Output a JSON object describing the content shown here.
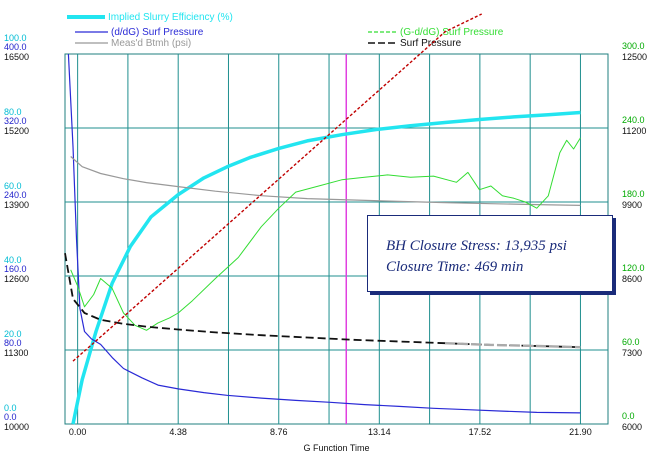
{
  "chart_data": {
    "type": "line",
    "title": "",
    "xlabel": "G Function Time",
    "x_ticks": [
      "0.00",
      "4.38",
      "8.76",
      "13.14",
      "17.52",
      "21.90"
    ],
    "xlim": [
      -0.55,
      23.1
    ],
    "grid": true,
    "closure_marker_x": 11.7,
    "axes": {
      "efficiency": {
        "ticks": [
          "0.0",
          "20.0",
          "40.0",
          "60.0",
          "80.0",
          "100.0"
        ],
        "ylim": [
          0,
          100
        ],
        "color": "#00bcd4"
      },
      "dd_pressure": {
        "ticks": [
          "0.0",
          "80.0",
          "160.0",
          "240.0",
          "320.0",
          "400.0"
        ],
        "ylim": [
          0,
          400
        ],
        "color": "#2222cc"
      },
      "btmh": {
        "ticks": [
          "10000",
          "11300",
          "12600",
          "13900",
          "15200",
          "16500"
        ],
        "ylim": [
          10000,
          16500
        ],
        "color": "#111111"
      },
      "gdd_pressure": {
        "ticks": [
          "0.0",
          "60.0",
          "120.0",
          "180.0",
          "240.0",
          "300.0"
        ],
        "ylim": [
          0,
          300
        ],
        "color": "#00aa00"
      },
      "surf_pressure": {
        "ticks": [
          "6000",
          "7300",
          "8600",
          "9900",
          "11200",
          "12500"
        ],
        "ylim": [
          6000,
          12500
        ],
        "color": "#111111"
      }
    },
    "series": [
      {
        "name": "Implied Slurry Efficiency (%)",
        "color": "#22e5f0",
        "axis": "efficiency",
        "x": [
          -0.2,
          0.2,
          0.8,
          1.5,
          2.3,
          3.2,
          4.38,
          5.5,
          6.5,
          7.5,
          8.76,
          10,
          11.5,
          13,
          14.5,
          16,
          17.5,
          19,
          20.5,
          21.9
        ],
        "y": [
          0,
          12,
          25,
          38,
          48,
          56,
          62,
          66.5,
          69.5,
          72,
          74.5,
          76.5,
          78.2,
          79.6,
          80.6,
          81.5,
          82.3,
          83,
          83.6,
          84.2
        ]
      },
      {
        "name": "(d/dG) Surf Pressure",
        "color": "#2a2ad6",
        "axis": "dd_pressure",
        "x": [
          -0.4,
          -0.2,
          -0.05,
          0.1,
          0.3,
          0.6,
          1.0,
          1.5,
          2.0,
          2.8,
          3.5,
          4.38,
          5.5,
          6.5,
          8.0,
          9.5,
          11.0,
          12.5,
          14.0,
          15.5,
          17.0,
          18.5,
          20.0,
          21.9
        ],
        "y": [
          400,
          300,
          200,
          125,
          100,
          92,
          86,
          72,
          60,
          50,
          42,
          38,
          34,
          31,
          28,
          25.5,
          23.5,
          21,
          19,
          17,
          15.5,
          14,
          12.5,
          12
        ]
      },
      {
        "name": "Meas'd Btmh (psi)",
        "color": "#999999",
        "axis": "btmh",
        "x": [
          -0.3,
          0.2,
          1.0,
          2.0,
          3.0,
          4.38,
          6.0,
          8.0,
          10.0,
          12.0,
          14.0,
          16.0,
          18.0,
          20.0,
          21.9
        ],
        "y": [
          14700,
          14520,
          14400,
          14310,
          14240,
          14170,
          14090,
          14010,
          13960,
          13935,
          13910,
          13890,
          13870,
          13855,
          13840
        ]
      },
      {
        "name": "(G-d/dG) Surf Pressure",
        "color": "#33dd33",
        "axis": "gdd_pressure",
        "x": [
          -0.3,
          0.0,
          0.3,
          0.7,
          1.0,
          1.5,
          2.0,
          2.5,
          3.0,
          3.5,
          4.0,
          4.38,
          5.0,
          6.0,
          7.0,
          8.0,
          8.76,
          9.5,
          10.5,
          11.5,
          12.5,
          13.5,
          14.5,
          15.5,
          16.5,
          17.0,
          17.5,
          18.0,
          18.5,
          19.0,
          19.5,
          20.0,
          20.5,
          21.0,
          21.3,
          21.6,
          21.9
        ],
        "y": [
          125,
          112,
          95,
          105,
          118,
          110,
          90,
          80,
          76,
          82,
          86,
          90,
          100,
          118,
          135,
          160,
          175,
          188,
          193,
          198,
          200,
          202,
          200,
          201,
          196,
          204,
          190,
          193,
          185,
          183,
          180,
          175,
          185,
          220,
          230,
          223,
          232
        ]
      },
      {
        "name": "Surf Pressure",
        "color": "#111111",
        "axis": "surf_pressure",
        "x": [
          -0.55,
          -0.2,
          0.3,
          1.0,
          2.0,
          3.0,
          4.38,
          6.0,
          8.0,
          10.0,
          12.0,
          14.0,
          16.0,
          18.0,
          20.0,
          21.9
        ],
        "y": [
          9000,
          8200,
          7950,
          7830,
          7760,
          7710,
          7660,
          7610,
          7560,
          7520,
          7480,
          7450,
          7420,
          7390,
          7370,
          7350
        ]
      },
      {
        "name": "",
        "color": "#c00000",
        "axis": "efficiency",
        "x": [
          -0.2,
          2.0,
          4.0,
          6.0,
          8.0,
          10.0,
          12.0,
          14.0,
          16.0,
          17.6
        ],
        "y": [
          17,
          29,
          40,
          51,
          62,
          73,
          84,
          95,
          106,
          114
        ]
      }
    ],
    "annotation": {
      "line1": "BH Closure Stress: 13,935 psi",
      "line2": "Closure Time:  469 min"
    }
  }
}
